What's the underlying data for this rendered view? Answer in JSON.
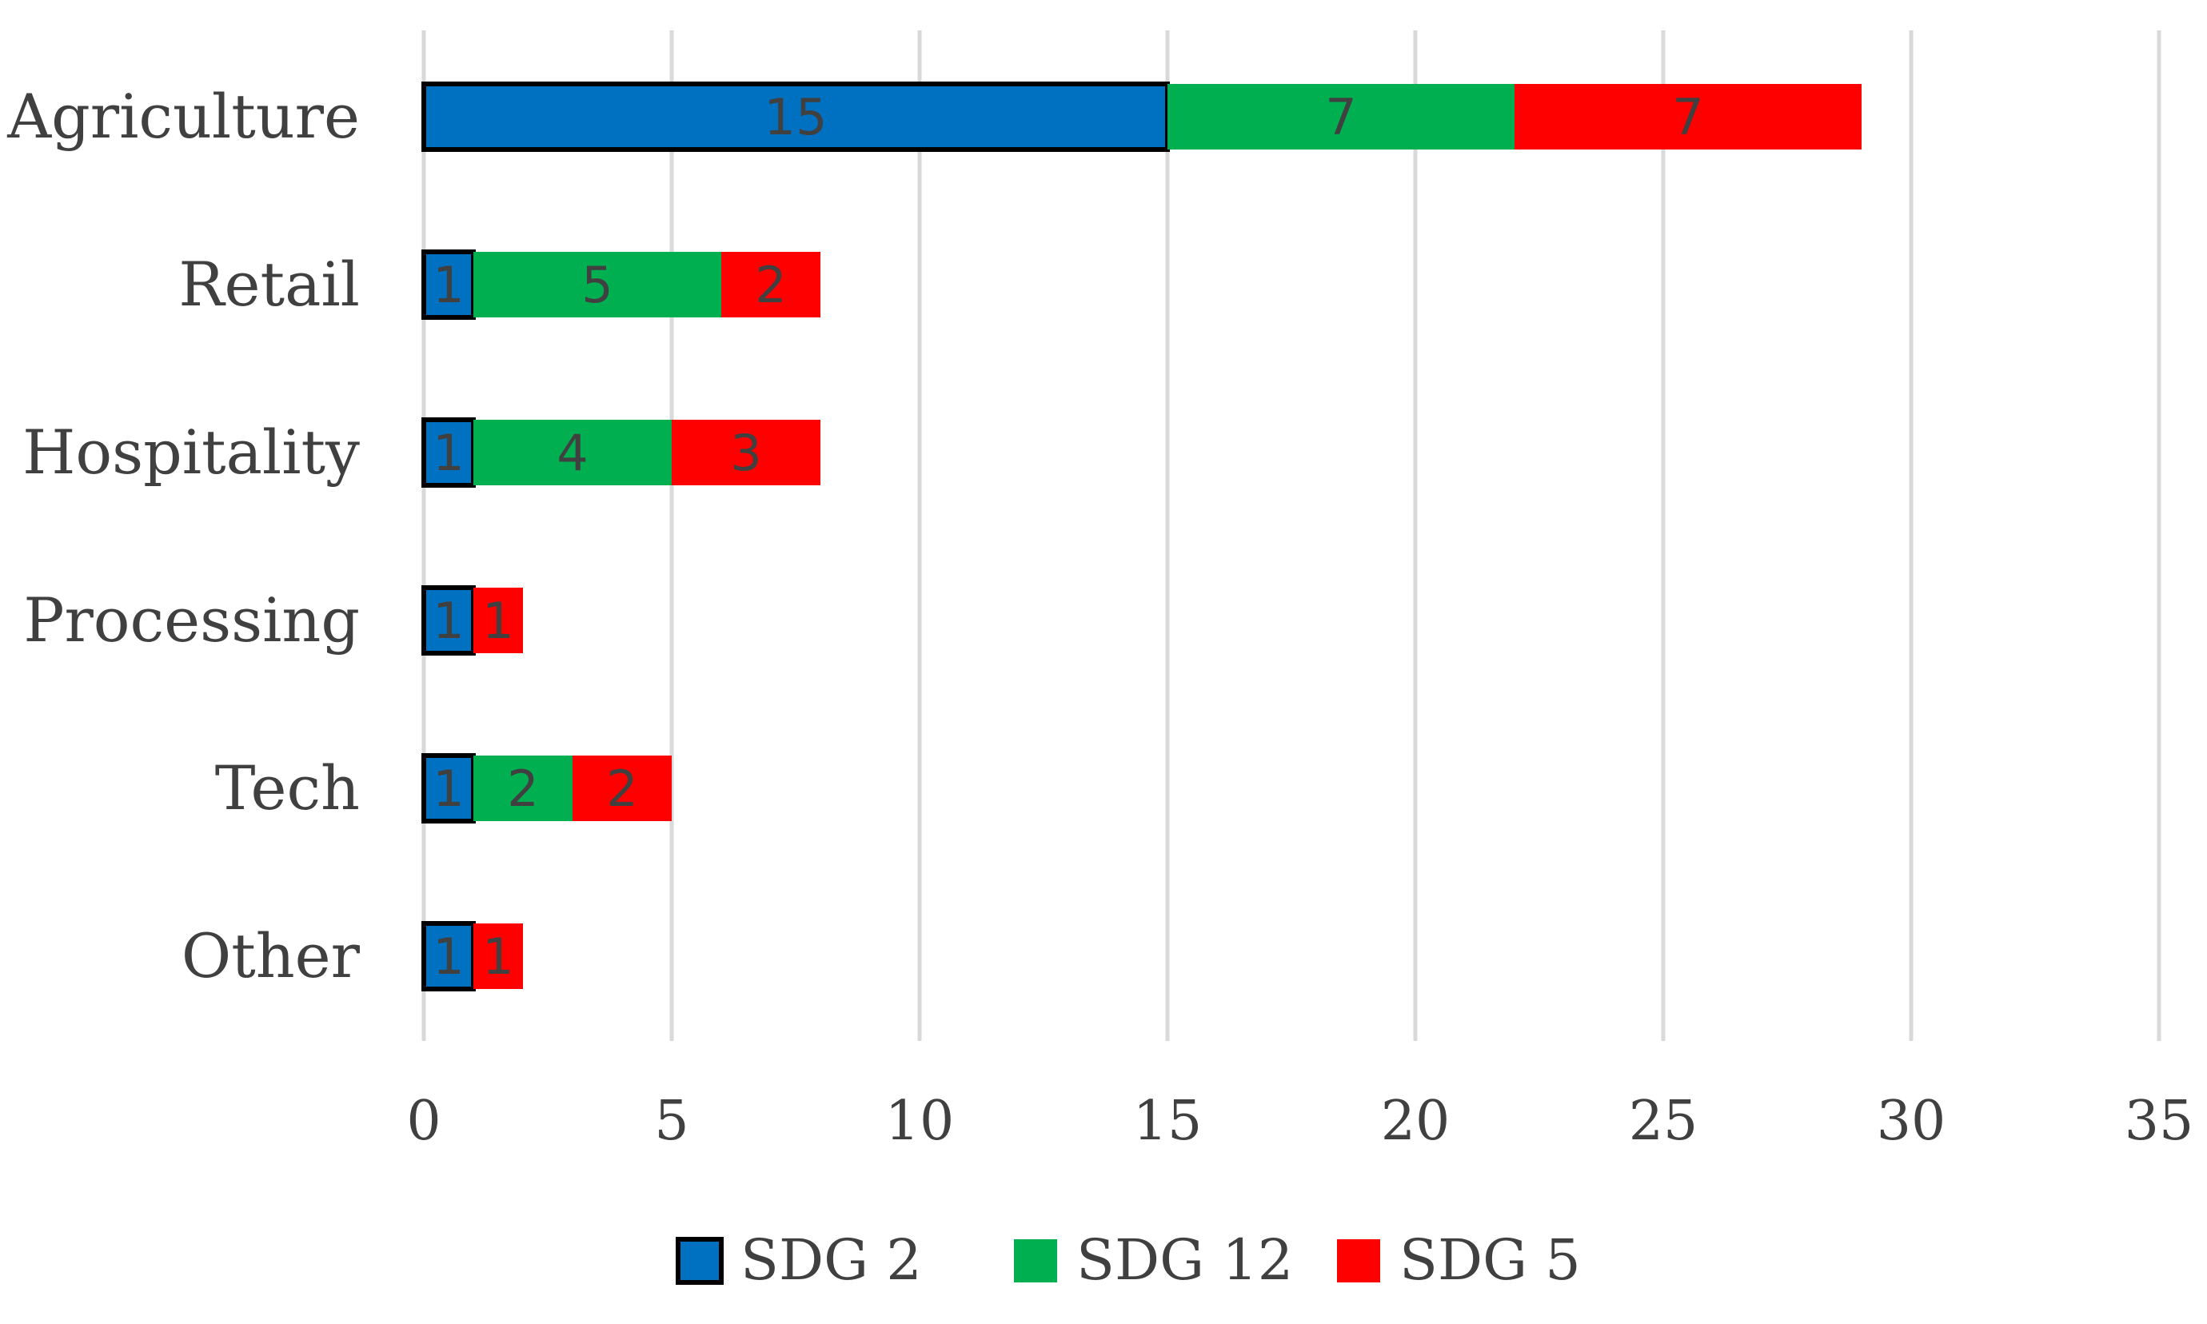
{
  "chart_data": {
    "type": "bar",
    "orientation": "horizontal",
    "stacked": true,
    "title": "",
    "xlabel": "",
    "ylabel": "",
    "categories": [
      "Agriculture",
      "Retail",
      "Hospitality",
      "Processing",
      "Tech",
      "Other"
    ],
    "series": [
      {
        "name": "SDG 2",
        "color": "#0070c0",
        "outlined": true,
        "values": [
          15,
          1,
          1,
          1,
          1,
          1
        ]
      },
      {
        "name": "SDG 12",
        "color": "#00b050",
        "outlined": false,
        "values": [
          7,
          5,
          4,
          0,
          2,
          0
        ]
      },
      {
        "name": "SDG 5",
        "color": "#ff0000",
        "outlined": false,
        "values": [
          7,
          2,
          3,
          1,
          2,
          1
        ]
      }
    ],
    "xlim": [
      0,
      35
    ],
    "xticks": [
      0,
      5,
      10,
      15,
      20,
      25,
      30,
      35
    ],
    "grid": true,
    "legend": "bottom-center"
  }
}
